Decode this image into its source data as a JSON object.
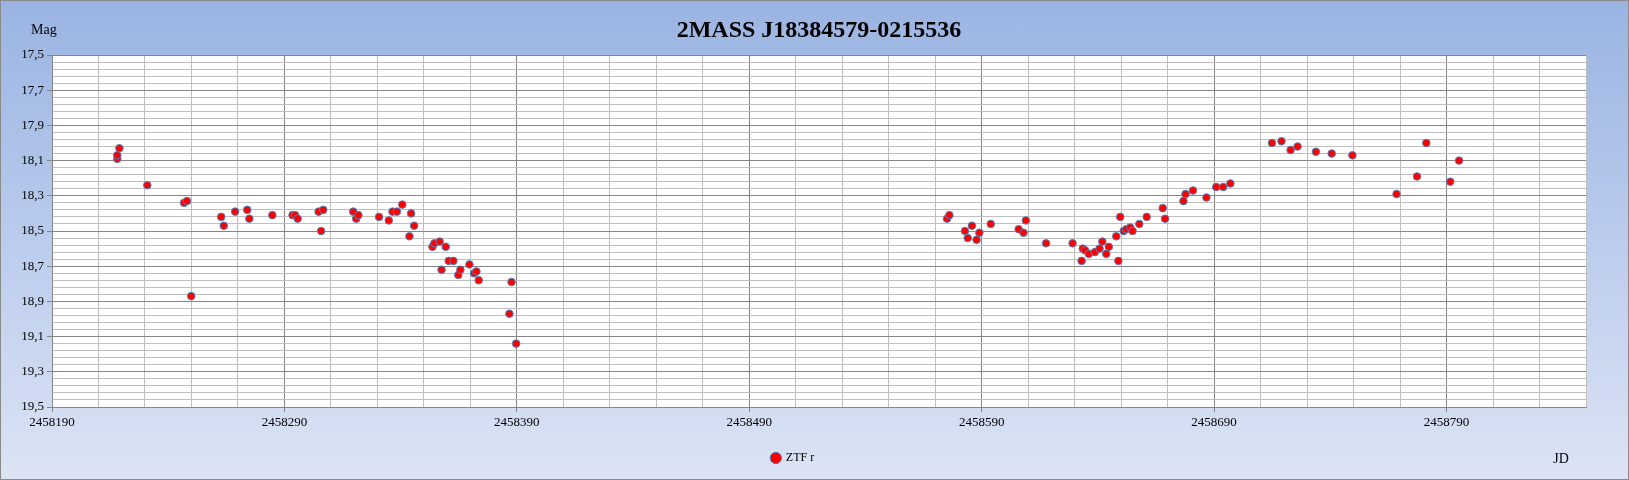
{
  "chart_data": {
    "type": "scatter",
    "title": "2MASS J18384579-0215536",
    "xlabel": "JD",
    "ylabel": "Mag",
    "x": [
      2458218.1,
      2458218.1,
      2458219,
      2458231,
      2458246.8,
      2458248.1,
      2458249.9,
      2458262.8,
      2458263.9,
      2458268.8,
      2458274,
      2458274.9,
      2458284.8,
      2458293.5,
      2458294.6,
      2458295.7,
      2458304.7,
      2458305.8,
      2458306.7,
      2458319.6,
      2458320.9,
      2458321.8,
      2458330.7,
      2458334.9,
      2458336.5,
      2458338.4,
      2458340.7,
      2458343.8,
      2458344.5,
      2458345.8,
      2458353.7,
      2458354.5,
      2458356.8,
      2458357.6,
      2458359.4,
      2458360.7,
      2458362.7,
      2458364.8,
      2458365.7,
      2458369.6,
      2458371.6,
      2458372.6,
      2458373.6,
      2458386.8,
      2458387.7,
      2458389.7,
      2458575.1,
      2458576.1,
      2458582.8,
      2458584,
      2458585.8,
      2458587.8,
      2458589,
      2458593.9,
      2458605.9,
      2458608,
      2458609,
      2458617.7,
      2458629.1,
      2458633,
      2458633.5,
      2458634.5,
      2458636.1,
      2458638.7,
      2458640.7,
      2458641.9,
      2458643.6,
      2458644.7,
      2458647.9,
      2458648.8,
      2458649.6,
      2458651.1,
      2458652.2,
      2458653.9,
      2458654.9,
      2458657.8,
      2458661,
      2458667.9,
      2458668.9,
      2458676.8,
      2458677.7,
      2458680.9,
      2458686.7,
      2458690.9,
      2458693.9,
      2458697,
      2458714.9,
      2458719,
      2458722.9,
      2458725.9,
      2458733.8,
      2458740.6,
      2458749.5,
      2458768.5,
      2458777.3,
      2458781.3,
      2458791.6,
      2458795.4
    ],
    "series": [
      {
        "name": "ZTF r",
        "color": "#ff0000",
        "values": [
          18.09,
          18.07,
          18.03,
          18.24,
          18.34,
          18.33,
          18.87,
          18.42,
          18.47,
          18.39,
          18.38,
          18.43,
          18.41,
          18.41,
          18.41,
          18.43,
          18.39,
          18.5,
          18.38,
          18.39,
          18.43,
          18.41,
          18.42,
          18.44,
          18.39,
          18.39,
          18.35,
          18.53,
          18.4,
          18.47,
          18.59,
          18.57,
          18.56,
          18.72,
          18.59,
          18.67,
          18.67,
          18.75,
          18.72,
          18.69,
          18.74,
          18.73,
          18.78,
          18.97,
          18.79,
          19.14,
          18.43,
          18.41,
          18.5,
          18.54,
          18.47,
          18.55,
          18.51,
          18.46,
          18.49,
          18.51,
          18.44,
          18.57,
          18.57,
          18.67,
          18.6,
          18.61,
          18.63,
          18.62,
          18.6,
          18.56,
          18.63,
          18.59,
          18.53,
          18.67,
          18.42,
          18.5,
          18.49,
          18.48,
          18.5,
          18.46,
          18.42,
          18.37,
          18.43,
          18.33,
          18.29,
          18.27,
          18.31,
          18.25,
          18.25,
          18.23,
          18,
          17.99,
          18.04,
          18.02,
          18.05,
          18.06,
          18.07,
          18.29,
          18.19,
          18,
          18.22,
          18.1
        ]
      }
    ],
    "xlim": [
      2458190,
      2458850
    ],
    "xticks": [
      2458190,
      {
        "value": 2458210,
        "label": null
      },
      {
        "value": 2458230,
        "label": null
      },
      {
        "value": 2458250,
        "label": null
      },
      {
        "value": 2458270,
        "label": null
      },
      2458290,
      {
        "value": 2458310,
        "label": null
      },
      {
        "value": 2458330,
        "label": null
      },
      {
        "value": 2458350,
        "label": null
      },
      {
        "value": 2458370,
        "label": null
      },
      2458390,
      {
        "value": 2458410,
        "label": null
      },
      {
        "value": 2458430,
        "label": null
      },
      {
        "value": 2458450,
        "label": null
      },
      {
        "value": 2458470,
        "label": null
      },
      2458490,
      {
        "value": 2458510,
        "label": null
      },
      {
        "value": 2458530,
        "label": null
      },
      {
        "value": 2458550,
        "label": null
      },
      {
        "value": 2458570,
        "label": null
      },
      2458590,
      {
        "value": 2458610,
        "label": null
      },
      {
        "value": 2458630,
        "label": null
      },
      {
        "value": 2458650,
        "label": null
      },
      {
        "value": 2458670,
        "label": null
      },
      2458690,
      {
        "value": 2458710,
        "label": null
      },
      {
        "value": 2458730,
        "label": null
      },
      {
        "value": 2458750,
        "label": null
      },
      {
        "value": 2458770,
        "label": null
      },
      2458790,
      {
        "value": 2458810,
        "label": null
      },
      {
        "value": 2458830,
        "label": null
      },
      {
        "value": 2458850,
        "label": null
      }
    ],
    "ylim": [
      19.5,
      17.5
    ],
    "yticks": [
      {
        "value": 17.5,
        "label": "17,5"
      },
      {
        "value": 17.54,
        "label": null
      },
      {
        "value": 17.58,
        "label": null
      },
      {
        "value": 17.62,
        "label": null
      },
      {
        "value": 17.66,
        "label": null
      },
      {
        "value": 17.7,
        "label": "17,7"
      },
      {
        "value": 17.74,
        "label": null
      },
      {
        "value": 17.78,
        "label": null
      },
      {
        "value": 17.82,
        "label": null
      },
      {
        "value": 17.86,
        "label": null
      },
      {
        "value": 17.9,
        "label": "17,9"
      },
      {
        "value": 17.94,
        "label": null
      },
      {
        "value": 17.98,
        "label": null
      },
      {
        "value": 18.02,
        "label": null
      },
      {
        "value": 18.06,
        "label": null
      },
      {
        "value": 18.1,
        "label": "18,1"
      },
      {
        "value": 18.14,
        "label": null
      },
      {
        "value": 18.18,
        "label": null
      },
      {
        "value": 18.22,
        "label": null
      },
      {
        "value": 18.26,
        "label": null
      },
      {
        "value": 18.3,
        "label": "18,3"
      },
      {
        "value": 18.34,
        "label": null
      },
      {
        "value": 18.38,
        "label": null
      },
      {
        "value": 18.42,
        "label": null
      },
      {
        "value": 18.46,
        "label": null
      },
      {
        "value": 18.5,
        "label": "18,5"
      },
      {
        "value": 18.54,
        "label": null
      },
      {
        "value": 18.58,
        "label": null
      },
      {
        "value": 18.62,
        "label": null
      },
      {
        "value": 18.66,
        "label": null
      },
      {
        "value": 18.7,
        "label": "18,7"
      },
      {
        "value": 18.74,
        "label": null
      },
      {
        "value": 18.78,
        "label": null
      },
      {
        "value": 18.82,
        "label": null
      },
      {
        "value": 18.86,
        "label": null
      },
      {
        "value": 18.9,
        "label": "18,9"
      },
      {
        "value": 18.94,
        "label": null
      },
      {
        "value": 18.98,
        "label": null
      },
      {
        "value": 19.02,
        "label": null
      },
      {
        "value": 19.06,
        "label": null
      },
      {
        "value": 19.1,
        "label": "19,1"
      },
      {
        "value": 19.14,
        "label": null
      },
      {
        "value": 19.18,
        "label": null
      },
      {
        "value": 19.22,
        "label": null
      },
      {
        "value": 19.26,
        "label": null
      },
      {
        "value": 19.3,
        "label": "19,3"
      },
      {
        "value": 19.34,
        "label": null
      },
      {
        "value": 19.38,
        "label": null
      },
      {
        "value": 19.42,
        "label": null
      },
      {
        "value": 19.46,
        "label": null
      },
      {
        "value": 19.5,
        "label": "19,5"
      }
    ],
    "grid": true,
    "legend": "bottom",
    "marker": "circle"
  }
}
